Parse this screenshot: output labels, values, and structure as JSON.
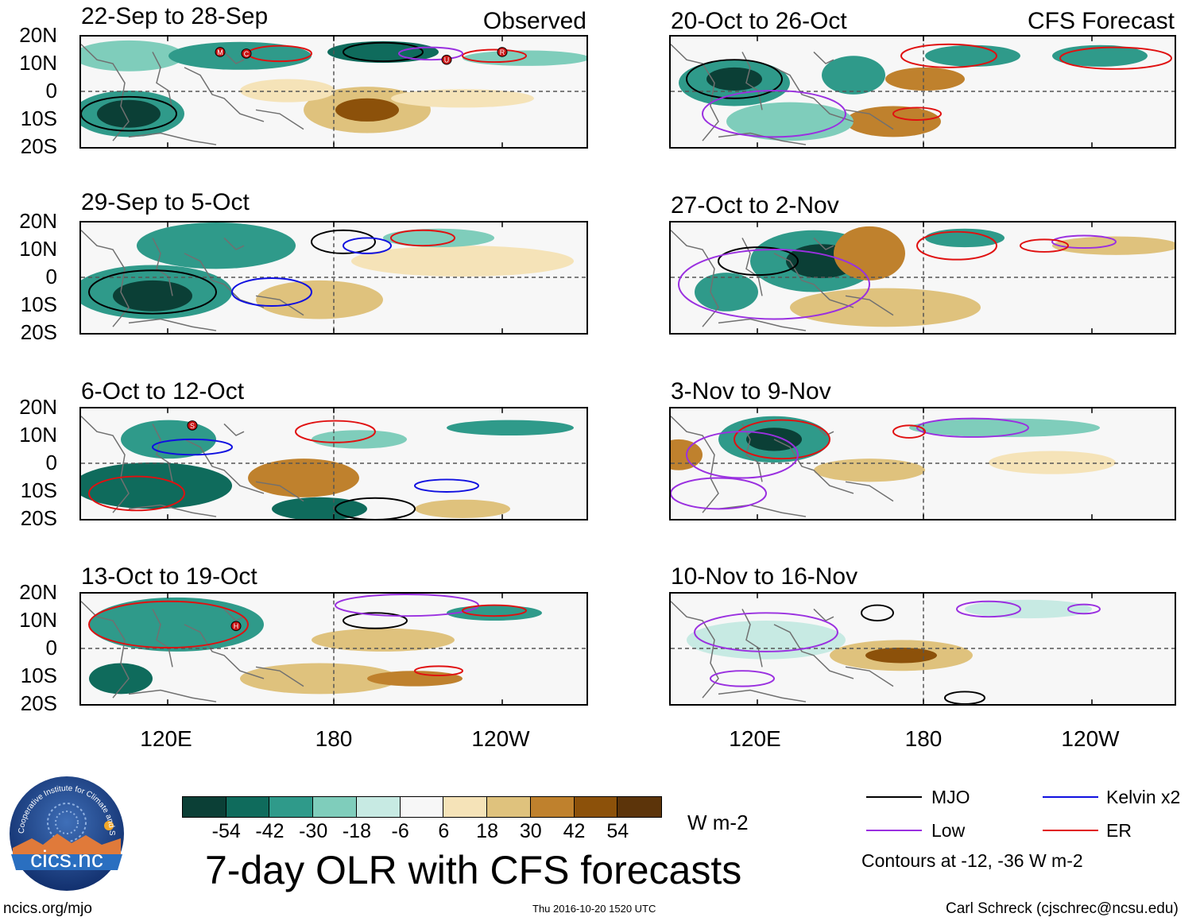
{
  "figure": {
    "title": "7-day OLR with CFS forecasts",
    "units": "W m-2",
    "contours_note": "Contours at -12, -36 W m-2",
    "website": "ncics.org/mjo",
    "timestamp": "Thu 2016-10-20 1520 UTC",
    "author": "Carl Schreck (cjschrec@ncsu.edu)",
    "logo": {
      "text": "cics.nc",
      "ring_text": "Cooperative Institute for Climate and Satellites"
    }
  },
  "columns": {
    "observed_label": "Observed",
    "forecast_label": "CFS Forecast"
  },
  "axes": {
    "y_ticks": [
      "20N",
      "10N",
      "0",
      "10S",
      "20S"
    ],
    "x_ticks": [
      "120E",
      "180",
      "120W"
    ]
  },
  "observed_panels": [
    {
      "title": "22-Sep to 28-Sep",
      "storms": [
        "M",
        "C",
        "U",
        "R"
      ]
    },
    {
      "title": "29-Sep to 5-Oct",
      "storms": []
    },
    {
      "title": "6-Oct to 12-Oct",
      "storms": [
        "S"
      ]
    },
    {
      "title": "13-Oct to 19-Oct",
      "storms": [
        "H"
      ]
    }
  ],
  "forecast_panels": [
    {
      "title": "20-Oct to 26-Oct"
    },
    {
      "title": "27-Oct to 2-Nov"
    },
    {
      "title": "3-Nov to 9-Nov"
    },
    {
      "title": "10-Nov to 16-Nov"
    }
  ],
  "colorbar": {
    "tick_labels": [
      "-54",
      "-42",
      "-30",
      "-18",
      "-6",
      "6",
      "18",
      "30",
      "42",
      "54"
    ],
    "colors": [
      "#0b3f36",
      "#0f6b5c",
      "#2f9a8a",
      "#7fcdbb",
      "#c7eae3",
      "#f7f7f7",
      "#f5e3b8",
      "#dfc27d",
      "#bf812d",
      "#8c510a",
      "#5c340a"
    ]
  },
  "legend": {
    "items": [
      {
        "label": "MJO",
        "color": "#000000"
      },
      {
        "label": "Kelvin x2",
        "color": "#1010e0"
      },
      {
        "label": "Low",
        "color": "#9a30e0"
      },
      {
        "label": "ER",
        "color": "#e01010"
      }
    ]
  }
}
